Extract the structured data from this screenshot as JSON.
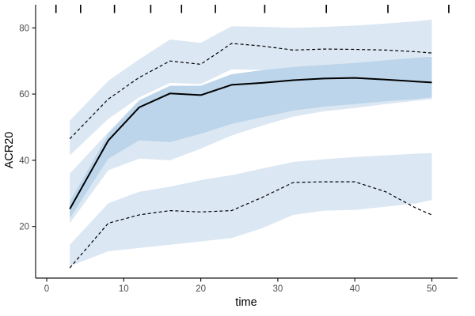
{
  "chart_data": {
    "type": "line",
    "title": "",
    "xlabel": "time",
    "ylabel": "ACR20",
    "x_ticks": [
      0,
      10,
      20,
      30,
      40,
      50
    ],
    "y_ticks": [
      20,
      40,
      60,
      80
    ],
    "xlim": [
      -1.5,
      53.3
    ],
    "ylim": [
      4.4,
      87
    ],
    "grid": false,
    "legend": "none",
    "rug_top_x": [
      1.2,
      4.4,
      8.8,
      13.5,
      17.5,
      21.9,
      28.3,
      36.3,
      44.3,
      52.2
    ],
    "x": [
      3,
      8,
      12,
      16,
      20,
      24,
      28,
      32,
      36,
      40,
      44,
      48,
      50
    ],
    "series": [
      {
        "name": "upper-dashed-curve",
        "line_style": "dashed",
        "values": [
          46.5,
          58.5,
          65,
          70,
          69,
          75.3,
          74.5,
          73.3,
          73.6,
          73.5,
          73.3,
          72.8,
          72.4
        ],
        "band_lo": [
          41.5,
          52.5,
          59,
          63.4,
          63,
          67.5,
          67.3,
          67,
          67.2,
          67.5,
          68.5,
          70.5,
          71.5
        ],
        "band_hi": [
          52,
          64,
          70.5,
          76.5,
          75.5,
          80.5,
          80.3,
          80,
          80.3,
          80.7,
          81.3,
          82,
          82.5
        ]
      },
      {
        "name": "middle-solid-curve",
        "line_style": "solid",
        "values": [
          25.3,
          46,
          56,
          60.2,
          59.7,
          62.8,
          63.4,
          64.2,
          64.7,
          64.9,
          64.4,
          63.8,
          63.5
        ],
        "band_lo": [
          22.5,
          40.5,
          46,
          45.5,
          48,
          51,
          53,
          55,
          56.2,
          57,
          57.8,
          58.5,
          59
        ],
        "band_hi": [
          27.5,
          48,
          58,
          62.5,
          62.5,
          66,
          67.2,
          68.2,
          68.8,
          69.4,
          70.2,
          71,
          71.3
        ],
        "outer_band_lo": [
          21,
          37,
          40.5,
          40,
          43.5,
          47.5,
          50.5,
          53.2,
          54.8,
          55.8,
          57,
          58,
          58.5
        ],
        "outer_band_hi": [
          36,
          48.5,
          58.2,
          62.5,
          62.5,
          66,
          67.2,
          68.2,
          68.8,
          69.4,
          70.2,
          71,
          71.3
        ]
      },
      {
        "name": "lower-dashed-curve",
        "line_style": "dashed",
        "values": [
          7.5,
          21,
          23.5,
          24.8,
          24.4,
          24.8,
          28.8,
          33.3,
          33.5,
          33.5,
          30.5,
          25.5,
          23.5
        ],
        "band_lo": [
          8,
          12.5,
          13.5,
          14.5,
          15.5,
          16.5,
          19.5,
          23.5,
          24.8,
          25,
          26,
          27,
          28
        ],
        "band_hi": [
          14.5,
          27,
          30.5,
          32,
          34,
          35.5,
          37.5,
          39.5,
          40.3,
          41,
          41.5,
          42,
          42.2
        ]
      }
    ],
    "colors": {
      "ribbon_light": "#dbe7f3",
      "ribbon_dark": "#bcd5ea",
      "line": "#000000",
      "axis": "#1a1a1a",
      "tick_label": "#4d4d4d",
      "axis_title": "#000000",
      "background": "#ffffff"
    }
  }
}
